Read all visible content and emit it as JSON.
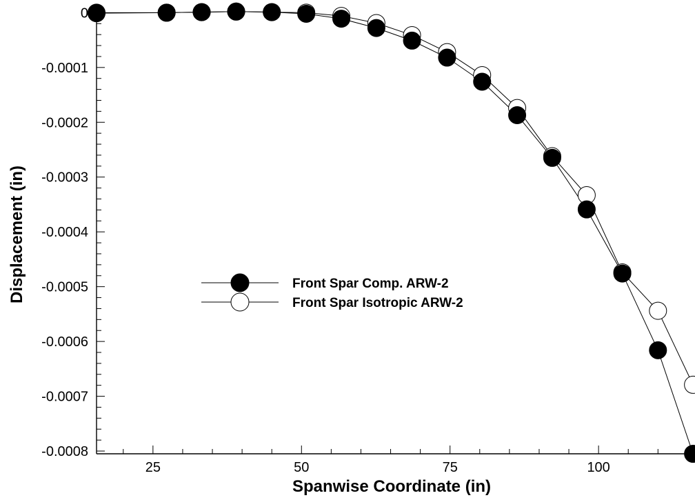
{
  "chart_data": {
    "type": "line",
    "title": "",
    "xlabel": "Spanwise Coordinate (in)",
    "ylabel": "Displacement (in)",
    "xlim": [
      15.5,
      116
    ],
    "ylim": [
      -0.000805,
      5.5e-06
    ],
    "x_ticks": [
      25,
      50,
      75,
      100
    ],
    "x_tick_labels": [
      "25",
      "50",
      "75",
      "100"
    ],
    "y_ticks": [
      0,
      -0.0001,
      -0.0002,
      -0.0003,
      -0.0004,
      -0.0005,
      -0.0006,
      -0.0007,
      -0.0008
    ],
    "y_tick_labels": [
      "0",
      "-0.0001",
      "-0.0002",
      "-0.0003",
      "-0.0004",
      "-0.0005",
      "-0.0006",
      "-0.0007",
      "-0.0008"
    ],
    "grid": false,
    "legend_position": "center-left",
    "series": [
      {
        "name": "Front Spar Comp. ARW-2",
        "marker": "filled-circle",
        "color": "#000000",
        "x": [
          15.5,
          27.3,
          33.2,
          39.0,
          45.0,
          50.8,
          56.7,
          62.6,
          68.6,
          74.5,
          80.4,
          86.3,
          92.2,
          98.0,
          104.0,
          110.0,
          115.9
        ],
        "y": [
          0,
          0,
          1e-06,
          2e-06,
          1e-06,
          -2e-06,
          -1.1e-05,
          -2.8e-05,
          -5.1e-05,
          -8.2e-05,
          -0.000126,
          -0.000187,
          -0.000265,
          -0.000359,
          -0.000476,
          -0.000616,
          -0.000805
        ]
      },
      {
        "name": "Front Spar Isotropic ARW-2",
        "marker": "open-circle",
        "color": "#000000",
        "x": [
          15.5,
          27.3,
          33.2,
          39.0,
          45.0,
          50.8,
          56.7,
          62.6,
          68.6,
          74.5,
          80.4,
          86.3,
          92.2,
          98.0,
          104.0,
          110.0,
          115.9
        ],
        "y": [
          -1e-06,
          0,
          1e-06,
          2e-06,
          1e-06,
          0,
          -6e-06,
          -1.9e-05,
          -4.1e-05,
          -7.2e-05,
          -0.000114,
          -0.000174,
          -0.000262,
          -0.000333,
          -0.000474,
          -0.000544,
          -0.000679
        ]
      }
    ]
  }
}
